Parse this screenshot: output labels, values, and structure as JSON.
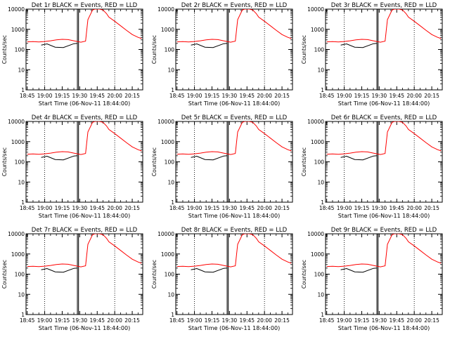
{
  "figure": {
    "background": "#ffffff",
    "axis_color": "#000000"
  },
  "x_ticks": [
    {
      "value": 0,
      "label": "18:45"
    },
    {
      "value": 15,
      "label": "19:00"
    },
    {
      "value": 30,
      "label": "19:15"
    },
    {
      "value": 45,
      "label": "19:30"
    },
    {
      "value": 60,
      "label": "19:45"
    },
    {
      "value": 75,
      "label": "20:00"
    },
    {
      "value": 90,
      "label": "20:15"
    }
  ],
  "y_ticks": [
    {
      "value": 1,
      "label": "1"
    },
    {
      "value": 10,
      "label": "10"
    },
    {
      "value": 100,
      "label": "100"
    },
    {
      "value": 1000,
      "label": "1000"
    },
    {
      "value": 10000,
      "label": "10000"
    }
  ],
  "chart_data": [
    {
      "type": "line",
      "panel": 1,
      "title": "Det 1r BLACK = Events, RED = LLD",
      "xlabel": "Start Time (06-Nov-11 18:44:00)",
      "ylabel": "Counts/sec",
      "xlim": [
        -1,
        99
      ],
      "ylim": [
        1,
        10000
      ],
      "y_scale": "log",
      "grid": false,
      "dotted_lines_x": [
        15,
        75
      ],
      "solid_lines_x": [
        43,
        44
      ],
      "dashed_lines_x": [],
      "series": [
        {
          "name": "Events",
          "color": "#000000",
          "x": [
            12,
            12,
            17,
            17,
            24,
            24,
            31,
            31,
            40,
            40,
            43
          ],
          "y": [
            165,
            165,
            190,
            190,
            130,
            130,
            125,
            125,
            195,
            195,
            200
          ]
        },
        {
          "name": "LLD",
          "color": "#ff0000",
          "x": [
            0,
            5,
            10,
            15,
            20,
            25,
            30,
            35,
            40,
            43,
            46,
            50,
            52,
            56,
            58,
            62,
            65,
            68,
            70,
            75,
            80,
            85,
            90,
            95,
            98
          ],
          "y": [
            240,
            245,
            238,
            250,
            270,
            300,
            320,
            310,
            270,
            250,
            230,
            260,
            3000,
            9000,
            10000,
            10000,
            9000,
            6000,
            4000,
            2500,
            1500,
            900,
            550,
            400,
            350
          ]
        }
      ]
    },
    {
      "type": "line",
      "panel": 2,
      "title": "Det 2r BLACK = Events, RED = LLD",
      "xlabel": "Start Time (06-Nov-11 18:44:00)",
      "ylabel": "Counts/sec",
      "xlim": [
        -1,
        99
      ],
      "ylim": [
        1,
        10000
      ],
      "y_scale": "log",
      "grid": false,
      "dotted_lines_x": [
        15,
        75
      ],
      "solid_lines_x": [
        43,
        44
      ],
      "dashed_lines_x": [],
      "series": [
        {
          "name": "Events",
          "color": "#000000",
          "x": [
            12,
            12,
            17,
            17,
            24,
            24,
            31,
            31,
            40,
            40,
            43
          ],
          "y": [
            165,
            165,
            190,
            190,
            130,
            130,
            125,
            125,
            195,
            195,
            200
          ]
        },
        {
          "name": "LLD",
          "color": "#ff0000",
          "x": [
            0,
            5,
            10,
            15,
            20,
            25,
            30,
            35,
            40,
            43,
            46,
            50,
            52,
            56,
            58,
            62,
            65,
            68,
            70,
            75,
            80,
            85,
            90,
            95,
            98
          ],
          "y": [
            240,
            245,
            238,
            250,
            270,
            300,
            320,
            310,
            270,
            250,
            230,
            260,
            3000,
            9000,
            10000,
            10000,
            9000,
            6000,
            4000,
            2500,
            1500,
            900,
            550,
            400,
            350
          ]
        }
      ]
    },
    {
      "type": "line",
      "panel": 3,
      "title": "Det 3r BLACK = Events, RED = LLD",
      "xlabel": "Start Time (06-Nov-11 18:44:00)",
      "ylabel": "Counts/sec",
      "xlim": [
        -1,
        99
      ],
      "ylim": [
        1,
        10000
      ],
      "y_scale": "log",
      "grid": false,
      "dotted_lines_x": [
        15,
        75
      ],
      "solid_lines_x": [
        43,
        44
      ],
      "dashed_lines_x": [],
      "series": [
        {
          "name": "Events",
          "color": "#000000",
          "x": [
            12,
            12,
            17,
            17,
            24,
            24,
            31,
            31,
            40,
            40,
            43
          ],
          "y": [
            165,
            165,
            190,
            190,
            130,
            130,
            125,
            125,
            195,
            195,
            200
          ]
        },
        {
          "name": "LLD",
          "color": "#ff0000",
          "x": [
            0,
            5,
            10,
            15,
            20,
            25,
            30,
            35,
            40,
            43,
            46,
            50,
            52,
            56,
            58,
            62,
            65,
            68,
            70,
            75,
            80,
            85,
            90,
            95,
            98
          ],
          "y": [
            240,
            245,
            238,
            250,
            270,
            300,
            320,
            310,
            270,
            250,
            230,
            260,
            3000,
            9000,
            10000,
            10000,
            9000,
            6000,
            4000,
            2500,
            1500,
            900,
            550,
            400,
            350
          ]
        }
      ]
    },
    {
      "type": "line",
      "panel": 4,
      "title": "Det 4r BLACK = Events, RED = LLD",
      "xlabel": "Start Time (06-Nov-11 18:44:00)",
      "ylabel": "Counts/sec",
      "xlim": [
        -1,
        99
      ],
      "ylim": [
        1,
        10000
      ],
      "y_scale": "log",
      "grid": false,
      "dotted_lines_x": [
        15,
        75
      ],
      "solid_lines_x": [
        43,
        44
      ],
      "dashed_lines_x": [],
      "series": [
        {
          "name": "Events",
          "color": "#000000",
          "x": [
            12,
            12,
            17,
            17,
            24,
            24,
            31,
            31,
            40,
            40,
            43
          ],
          "y": [
            165,
            165,
            190,
            190,
            130,
            130,
            125,
            125,
            195,
            195,
            200
          ]
        },
        {
          "name": "LLD",
          "color": "#ff0000",
          "x": [
            0,
            5,
            10,
            15,
            20,
            25,
            30,
            35,
            40,
            43,
            46,
            50,
            52,
            56,
            58,
            62,
            65,
            68,
            70,
            75,
            80,
            85,
            90,
            95,
            98
          ],
          "y": [
            240,
            245,
            238,
            250,
            270,
            300,
            320,
            310,
            270,
            250,
            230,
            260,
            3000,
            9000,
            10000,
            10000,
            9000,
            6000,
            4000,
            2500,
            1500,
            900,
            550,
            400,
            350
          ]
        }
      ]
    },
    {
      "type": "line",
      "panel": 5,
      "title": "Det 5r BLACK = Events, RED = LLD",
      "xlabel": "Start Time (06-Nov-11 18:44:00)",
      "ylabel": "Counts/sec",
      "xlim": [
        -1,
        99
      ],
      "ylim": [
        1,
        10000
      ],
      "y_scale": "log",
      "grid": false,
      "dotted_lines_x": [
        15,
        75
      ],
      "solid_lines_x": [
        43,
        44
      ],
      "dashed_lines_x": [],
      "series": [
        {
          "name": "Events",
          "color": "#000000",
          "x": [
            12,
            12,
            17,
            17,
            24,
            24,
            31,
            31,
            40,
            40,
            43
          ],
          "y": [
            165,
            165,
            190,
            190,
            130,
            130,
            125,
            125,
            195,
            195,
            200
          ]
        },
        {
          "name": "LLD",
          "color": "#ff0000",
          "x": [
            0,
            5,
            10,
            15,
            20,
            25,
            30,
            35,
            40,
            43,
            46,
            50,
            52,
            56,
            58,
            62,
            65,
            68,
            70,
            75,
            80,
            85,
            90,
            95,
            98
          ],
          "y": [
            240,
            245,
            238,
            250,
            270,
            300,
            320,
            310,
            270,
            250,
            230,
            260,
            3000,
            9000,
            10000,
            10000,
            9000,
            6000,
            4000,
            2500,
            1500,
            900,
            550,
            400,
            350
          ]
        }
      ]
    },
    {
      "type": "line",
      "panel": 6,
      "title": "Det 6r BLACK = Events, RED = LLD",
      "xlabel": "Start Time (06-Nov-11 18:44:00)",
      "ylabel": "Counts/sec",
      "xlim": [
        -1,
        99
      ],
      "ylim": [
        1,
        10000
      ],
      "y_scale": "log",
      "grid": false,
      "dotted_lines_x": [
        15,
        75
      ],
      "solid_lines_x": [
        43,
        44
      ],
      "dashed_lines_x": [],
      "series": [
        {
          "name": "Events",
          "color": "#000000",
          "x": [
            12,
            12,
            17,
            17,
            24,
            24,
            31,
            31,
            40,
            40,
            43
          ],
          "y": [
            165,
            165,
            190,
            190,
            130,
            130,
            125,
            125,
            195,
            195,
            200
          ]
        },
        {
          "name": "LLD",
          "color": "#ff0000",
          "x": [
            0,
            5,
            10,
            15,
            20,
            25,
            30,
            35,
            40,
            43,
            46,
            50,
            52,
            56,
            58,
            62,
            65,
            68,
            70,
            75,
            80,
            85,
            90,
            95,
            98
          ],
          "y": [
            240,
            245,
            238,
            250,
            270,
            300,
            320,
            310,
            270,
            250,
            230,
            260,
            3000,
            9000,
            10000,
            10000,
            9000,
            6000,
            4000,
            2500,
            1500,
            900,
            550,
            400,
            350
          ]
        }
      ]
    },
    {
      "type": "line",
      "panel": 7,
      "title": "Det 7r BLACK = Events, RED = LLD",
      "xlabel": "Start Time (06-Nov-11 18:44:00)",
      "ylabel": "Counts/sec",
      "xlim": [
        -1,
        99
      ],
      "ylim": [
        1,
        10000
      ],
      "y_scale": "log",
      "grid": false,
      "dotted_lines_x": [
        15,
        75
      ],
      "solid_lines_x": [
        43,
        44
      ],
      "dashed_lines_x": [],
      "series": [
        {
          "name": "Events",
          "color": "#000000",
          "x": [
            12,
            12,
            17,
            17,
            24,
            24,
            31,
            31,
            40,
            40,
            43
          ],
          "y": [
            165,
            165,
            190,
            190,
            130,
            130,
            125,
            125,
            195,
            195,
            200
          ]
        },
        {
          "name": "LLD",
          "color": "#ff0000",
          "x": [
            0,
            5,
            10,
            15,
            20,
            25,
            30,
            35,
            40,
            43,
            46,
            50,
            52,
            56,
            58,
            62,
            65,
            68,
            70,
            75,
            80,
            85,
            90,
            95,
            98
          ],
          "y": [
            240,
            245,
            238,
            250,
            270,
            300,
            320,
            310,
            270,
            250,
            230,
            260,
            3000,
            9000,
            10000,
            10000,
            9000,
            6000,
            4000,
            2500,
            1500,
            900,
            550,
            400,
            350
          ]
        }
      ]
    },
    {
      "type": "line",
      "panel": 8,
      "title": "Det 8r BLACK = Events, RED = LLD",
      "xlabel": "Start Time (06-Nov-11 18:44:00)",
      "ylabel": "Counts/sec",
      "xlim": [
        -1,
        99
      ],
      "ylim": [
        1,
        10000
      ],
      "y_scale": "log",
      "grid": false,
      "dotted_lines_x": [
        15,
        75
      ],
      "solid_lines_x": [
        43,
        44
      ],
      "dashed_lines_x": [],
      "series": [
        {
          "name": "Events",
          "color": "#000000",
          "x": [
            12,
            12,
            17,
            17,
            24,
            24,
            31,
            31,
            40,
            40,
            43
          ],
          "y": [
            165,
            165,
            190,
            190,
            130,
            130,
            125,
            125,
            195,
            195,
            200
          ]
        },
        {
          "name": "LLD",
          "color": "#ff0000",
          "x": [
            0,
            5,
            10,
            15,
            20,
            25,
            30,
            35,
            40,
            43,
            46,
            50,
            52,
            56,
            58,
            62,
            65,
            68,
            70,
            75,
            80,
            85,
            90,
            95,
            98
          ],
          "y": [
            240,
            245,
            238,
            250,
            270,
            300,
            320,
            310,
            270,
            250,
            230,
            260,
            3000,
            9000,
            10000,
            10000,
            9000,
            6000,
            4000,
            2500,
            1500,
            900,
            550,
            400,
            350
          ]
        }
      ]
    },
    {
      "type": "line",
      "panel": 9,
      "title": "Det 9r BLACK = Events, RED = LLD",
      "xlabel": "Start Time (06-Nov-11 18:44:00)",
      "ylabel": "Counts/sec",
      "xlim": [
        -1,
        99
      ],
      "ylim": [
        1,
        10000
      ],
      "y_scale": "log",
      "grid": false,
      "dotted_lines_x": [
        15,
        75
      ],
      "solid_lines_x": [
        43,
        44
      ],
      "dashed_lines_x": [],
      "series": [
        {
          "name": "Events",
          "color": "#000000",
          "x": [
            12,
            12,
            17,
            17,
            24,
            24,
            31,
            31,
            40,
            40,
            43
          ],
          "y": [
            165,
            165,
            190,
            190,
            130,
            130,
            125,
            125,
            195,
            195,
            200
          ]
        },
        {
          "name": "LLD",
          "color": "#ff0000",
          "x": [
            0,
            5,
            10,
            15,
            20,
            25,
            30,
            35,
            40,
            43,
            46,
            50,
            52,
            56,
            58,
            62,
            65,
            68,
            70,
            75,
            80,
            85,
            90,
            95,
            98
          ],
          "y": [
            240,
            245,
            238,
            250,
            270,
            300,
            320,
            310,
            270,
            250,
            230,
            260,
            3000,
            9000,
            10000,
            10000,
            9000,
            6000,
            4000,
            2500,
            1500,
            900,
            550,
            400,
            350
          ]
        }
      ]
    }
  ]
}
